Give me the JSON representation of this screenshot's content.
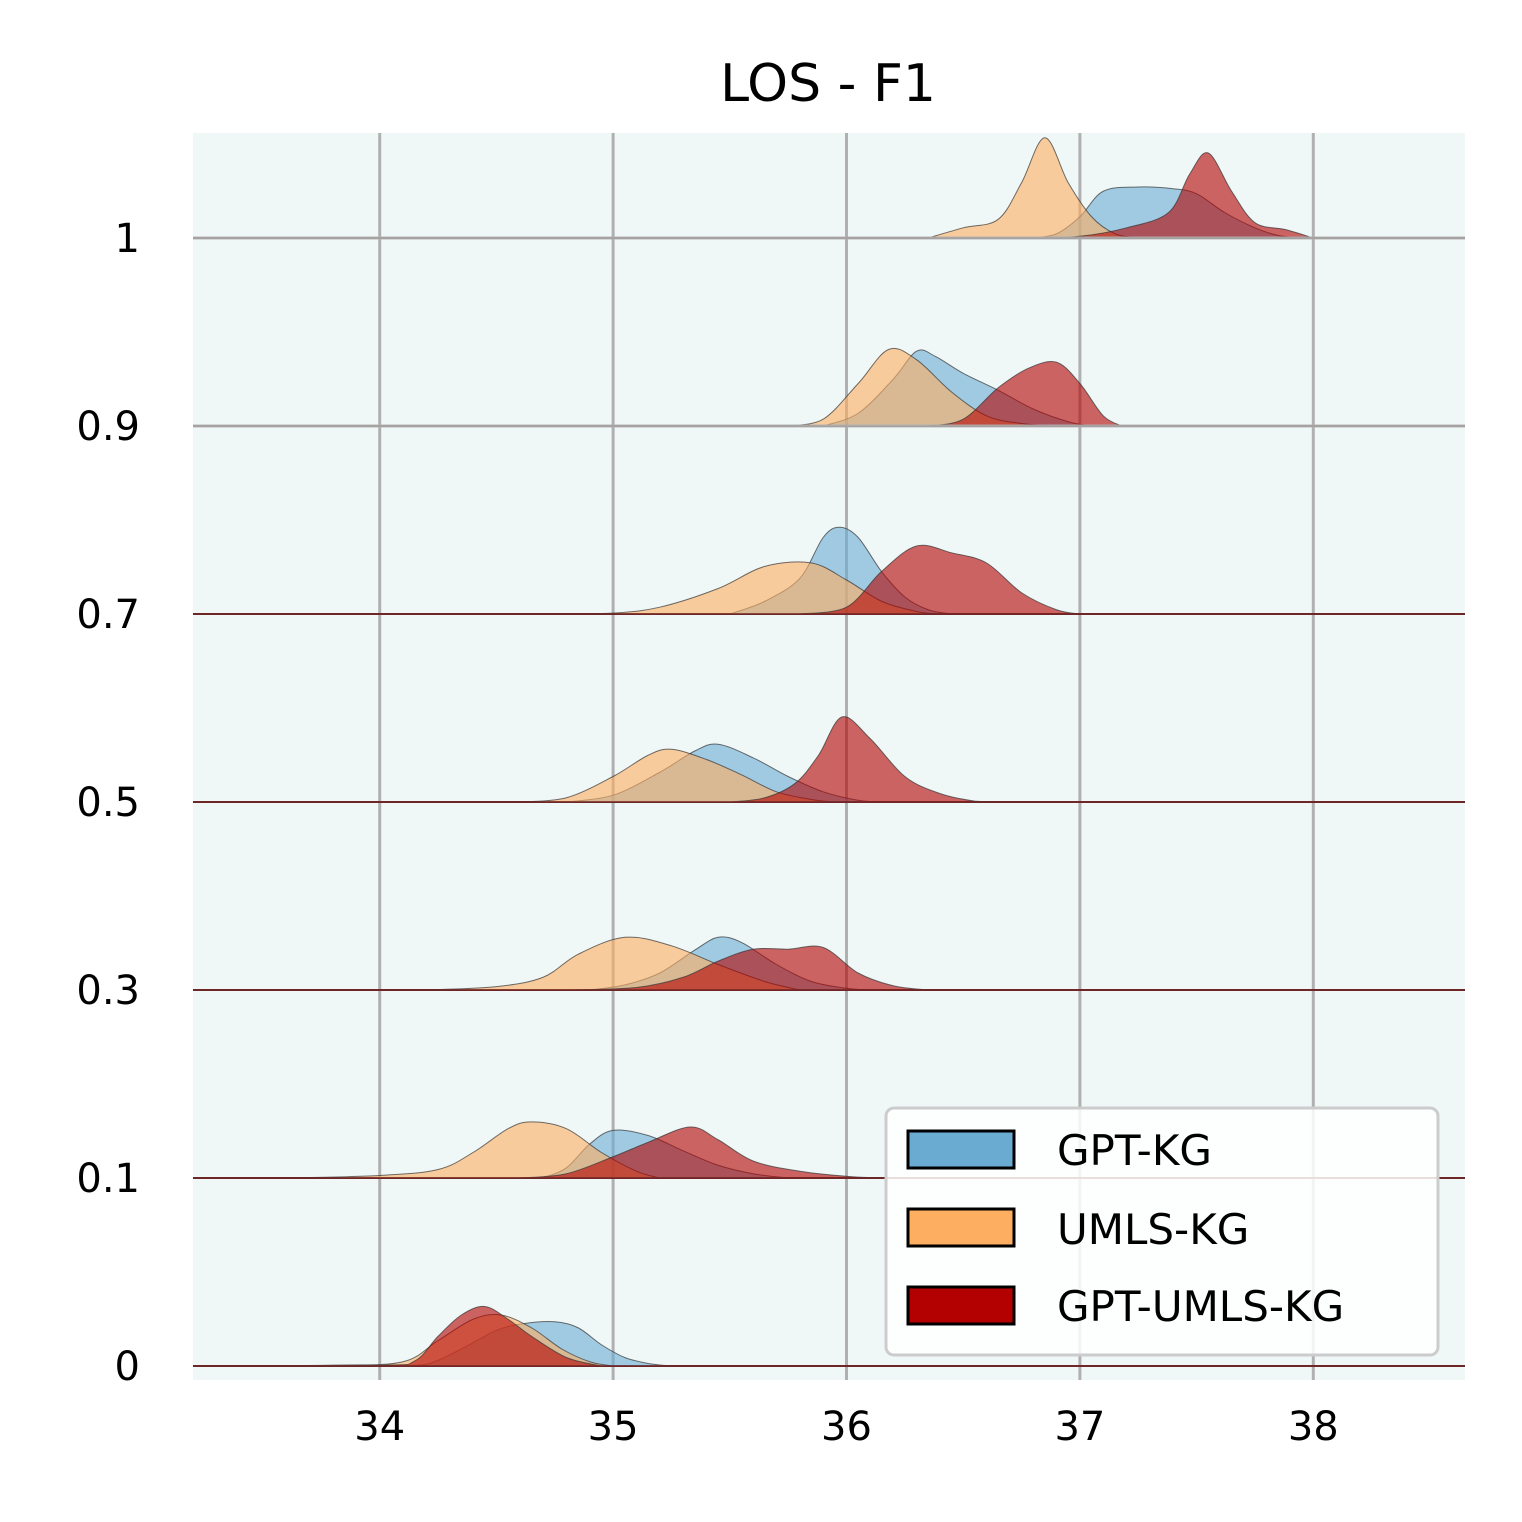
{
  "chart_data": {
    "type": "ridgeline",
    "title": "LOS - F1",
    "xlabel": "",
    "ylabel": "",
    "xlim": [
      33.2,
      38.65
    ],
    "x_ticks": [
      "34",
      "35",
      "36",
      "37",
      "38"
    ],
    "x_tick_values": [
      34,
      35,
      36,
      37,
      38
    ],
    "y_ticks": [
      "0",
      "0.1",
      "0.3",
      "0.5",
      "0.7",
      "0.9",
      "1"
    ],
    "grid": true,
    "legend_position": "bottom-right",
    "legend": [
      "GPT-KG",
      "UMLS-KG",
      "GPT-UMLS-KG"
    ],
    "colors": {
      "GPT-KG": "#6aabd2",
      "UMLS-KG": "#fdae61",
      "GPT-UMLS-KG": "#b30000",
      "plot_background": "#f0f8f7",
      "grid": "#b0b0b0"
    },
    "series": [
      {
        "name": "GPT-KG",
        "rows": [
          {
            "level": "0",
            "points": [
              [
                34.05,
                0
              ],
              [
                34.2,
                0.02
              ],
              [
                34.35,
                0.2
              ],
              [
                34.5,
                0.42
              ],
              [
                34.62,
                0.5
              ],
              [
                34.75,
                0.52
              ],
              [
                34.85,
                0.45
              ],
              [
                34.95,
                0.25
              ],
              [
                35.05,
                0.1
              ],
              [
                35.15,
                0.03
              ],
              [
                35.25,
                0
              ]
            ]
          },
          {
            "level": "0.1",
            "points": [
              [
                34.7,
                0
              ],
              [
                34.8,
                0.12
              ],
              [
                34.9,
                0.4
              ],
              [
                35.0,
                0.56
              ],
              [
                35.15,
                0.5
              ],
              [
                35.3,
                0.32
              ],
              [
                35.45,
                0.15
              ],
              [
                35.6,
                0.05
              ],
              [
                35.75,
                0
              ]
            ]
          },
          {
            "level": "0.3",
            "points": [
              [
                34.9,
                0
              ],
              [
                35.05,
                0.06
              ],
              [
                35.2,
                0.2
              ],
              [
                35.35,
                0.47
              ],
              [
                35.45,
                0.62
              ],
              [
                35.55,
                0.56
              ],
              [
                35.7,
                0.3
              ],
              [
                35.85,
                0.1
              ],
              [
                36.0,
                0.02
              ],
              [
                36.1,
                0
              ]
            ]
          },
          {
            "level": "0.5",
            "points": [
              [
                34.8,
                0
              ],
              [
                35.0,
                0.08
              ],
              [
                35.2,
                0.35
              ],
              [
                35.35,
                0.6
              ],
              [
                35.45,
                0.68
              ],
              [
                35.6,
                0.52
              ],
              [
                35.75,
                0.3
              ],
              [
                35.9,
                0.12
              ],
              [
                36.05,
                0.02
              ],
              [
                36.15,
                0
              ]
            ]
          },
          {
            "level": "0.7",
            "points": [
              [
                35.5,
                0
              ],
              [
                35.65,
                0.15
              ],
              [
                35.8,
                0.42
              ],
              [
                35.9,
                0.9
              ],
              [
                35.97,
                1.02
              ],
              [
                36.05,
                0.9
              ],
              [
                36.15,
                0.5
              ],
              [
                36.25,
                0.2
              ],
              [
                36.35,
                0.05
              ],
              [
                36.45,
                0
              ]
            ]
          },
          {
            "level": "0.9",
            "points": [
              [
                35.9,
                0
              ],
              [
                36.05,
                0.15
              ],
              [
                36.2,
                0.55
              ],
              [
                36.3,
                0.88
              ],
              [
                36.38,
                0.82
              ],
              [
                36.5,
                0.62
              ],
              [
                36.65,
                0.42
              ],
              [
                36.8,
                0.2
              ],
              [
                36.95,
                0.05
              ],
              [
                37.05,
                0
              ]
            ]
          },
          {
            "level": "1",
            "points": [
              [
                36.8,
                0
              ],
              [
                36.9,
                0.05
              ],
              [
                37.0,
                0.25
              ],
              [
                37.1,
                0.55
              ],
              [
                37.25,
                0.6
              ],
              [
                37.4,
                0.58
              ],
              [
                37.5,
                0.52
              ],
              [
                37.62,
                0.3
              ],
              [
                37.75,
                0.12
              ],
              [
                37.85,
                0.03
              ],
              [
                37.95,
                0
              ]
            ]
          }
        ]
      },
      {
        "name": "UMLS-KG",
        "rows": [
          {
            "level": "0",
            "points": [
              [
                33.2,
                0
              ],
              [
                33.8,
                0.01
              ],
              [
                34.1,
                0.05
              ],
              [
                34.25,
                0.3
              ],
              [
                34.4,
                0.55
              ],
              [
                34.52,
                0.6
              ],
              [
                34.65,
                0.45
              ],
              [
                34.78,
                0.2
              ],
              [
                34.9,
                0.05
              ],
              [
                35.0,
                0
              ]
            ]
          },
          {
            "level": "0.1",
            "points": [
              [
                33.6,
                0
              ],
              [
                34.0,
                0.03
              ],
              [
                34.25,
                0.1
              ],
              [
                34.4,
                0.3
              ],
              [
                34.55,
                0.58
              ],
              [
                34.65,
                0.66
              ],
              [
                34.8,
                0.58
              ],
              [
                34.95,
                0.3
              ],
              [
                35.1,
                0.08
              ],
              [
                35.2,
                0
              ]
            ]
          },
          {
            "level": "0.3",
            "points": [
              [
                34.2,
                0
              ],
              [
                34.5,
                0.04
              ],
              [
                34.7,
                0.15
              ],
              [
                34.85,
                0.42
              ],
              [
                35.05,
                0.62
              ],
              [
                35.25,
                0.52
              ],
              [
                35.45,
                0.3
              ],
              [
                35.65,
                0.1
              ],
              [
                35.8,
                0
              ]
            ]
          },
          {
            "level": "0.5",
            "points": [
              [
                34.6,
                0
              ],
              [
                34.8,
                0.05
              ],
              [
                35.0,
                0.3
              ],
              [
                35.15,
                0.55
              ],
              [
                35.25,
                0.62
              ],
              [
                35.4,
                0.5
              ],
              [
                35.55,
                0.32
              ],
              [
                35.7,
                0.12
              ],
              [
                35.85,
                0.03
              ],
              [
                35.95,
                0
              ]
            ]
          },
          {
            "level": "0.7",
            "points": [
              [
                34.8,
                0
              ],
              [
                35.0,
                0.01
              ],
              [
                35.2,
                0.08
              ],
              [
                35.45,
                0.3
              ],
              [
                35.65,
                0.56
              ],
              [
                35.85,
                0.6
              ],
              [
                36.0,
                0.4
              ],
              [
                36.15,
                0.15
              ],
              [
                36.3,
                0.03
              ],
              [
                36.4,
                0
              ]
            ]
          },
          {
            "level": "0.9",
            "points": [
              [
                35.75,
                0
              ],
              [
                35.9,
                0.08
              ],
              [
                36.05,
                0.5
              ],
              [
                36.18,
                0.9
              ],
              [
                36.3,
                0.78
              ],
              [
                36.45,
                0.4
              ],
              [
                36.6,
                0.12
              ],
              [
                36.75,
                0.03
              ],
              [
                36.9,
                0
              ]
            ]
          },
          {
            "level": "1",
            "points": [
              [
                36.35,
                0
              ],
              [
                36.5,
                0.12
              ],
              [
                36.65,
                0.22
              ],
              [
                36.75,
                0.65
              ],
              [
                36.85,
                1.18
              ],
              [
                36.95,
                0.65
              ],
              [
                37.05,
                0.25
              ],
              [
                37.15,
                0.05
              ],
              [
                37.25,
                0
              ]
            ]
          }
        ]
      },
      {
        "name": "GPT-UMLS-KG",
        "rows": [
          {
            "level": "0",
            "points": [
              [
                33.2,
                0
              ],
              [
                34.0,
                0.01
              ],
              [
                34.15,
                0.06
              ],
              [
                34.25,
                0.35
              ],
              [
                34.35,
                0.6
              ],
              [
                34.45,
                0.7
              ],
              [
                34.55,
                0.55
              ],
              [
                34.65,
                0.35
              ],
              [
                34.8,
                0.1
              ],
              [
                34.95,
                0
              ]
            ]
          },
          {
            "level": "0.1",
            "points": [
              [
                34.6,
                0
              ],
              [
                34.8,
                0.05
              ],
              [
                35.0,
                0.25
              ],
              [
                35.15,
                0.42
              ],
              [
                35.33,
                0.6
              ],
              [
                35.45,
                0.45
              ],
              [
                35.6,
                0.2
              ],
              [
                35.8,
                0.08
              ],
              [
                36.05,
                0.01
              ],
              [
                36.2,
                0
              ]
            ]
          },
          {
            "level": "0.3",
            "points": [
              [
                34.8,
                0
              ],
              [
                35.1,
                0.03
              ],
              [
                35.3,
                0.15
              ],
              [
                35.45,
                0.34
              ],
              [
                35.6,
                0.48
              ],
              [
                35.75,
                0.48
              ],
              [
                35.9,
                0.5
              ],
              [
                36.05,
                0.2
              ],
              [
                36.2,
                0.05
              ],
              [
                36.35,
                0
              ]
            ]
          },
          {
            "level": "0.5",
            "points": [
              [
                35.5,
                0
              ],
              [
                35.65,
                0.05
              ],
              [
                35.78,
                0.22
              ],
              [
                35.88,
                0.55
              ],
              [
                35.98,
                1.0
              ],
              [
                36.1,
                0.75
              ],
              [
                36.25,
                0.3
              ],
              [
                36.4,
                0.1
              ],
              [
                36.55,
                0.01
              ],
              [
                36.65,
                0
              ]
            ]
          },
          {
            "level": "0.7",
            "points": [
              [
                35.8,
                0
              ],
              [
                36.0,
                0.08
              ],
              [
                36.15,
                0.5
              ],
              [
                36.3,
                0.8
              ],
              [
                36.45,
                0.72
              ],
              [
                36.6,
                0.6
              ],
              [
                36.75,
                0.25
              ],
              [
                36.9,
                0.05
              ],
              [
                37.0,
                0
              ]
            ]
          },
          {
            "level": "0.9",
            "points": [
              [
                36.35,
                0
              ],
              [
                36.5,
                0.08
              ],
              [
                36.65,
                0.45
              ],
              [
                36.78,
                0.68
              ],
              [
                36.9,
                0.75
              ],
              [
                37.0,
                0.5
              ],
              [
                37.1,
                0.12
              ],
              [
                37.18,
                0
              ]
            ]
          },
          {
            "level": "1",
            "points": [
              [
                36.8,
                0
              ],
              [
                37.0,
                0.02
              ],
              [
                37.2,
                0.12
              ],
              [
                37.38,
                0.3
              ],
              [
                37.47,
                0.75
              ],
              [
                37.55,
                1.0
              ],
              [
                37.65,
                0.55
              ],
              [
                37.75,
                0.18
              ],
              [
                37.88,
                0.1
              ],
              [
                38.0,
                0
              ]
            ]
          }
        ]
      }
    ]
  }
}
